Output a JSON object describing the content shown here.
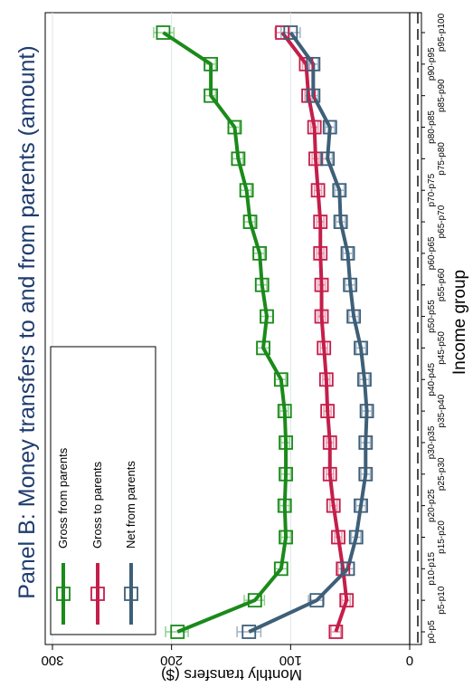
{
  "chart_data": {
    "type": "line",
    "title": "Panel B: Money transfers to and from parents (amount)",
    "xlabel": "Income group",
    "ylabel": "Monthly transfers ($)",
    "ylim": [
      0,
      300
    ],
    "yticks": [
      0,
      100,
      200,
      300
    ],
    "grid": true,
    "legend_position": "bottom-left",
    "categories": [
      "p0-p5",
      "p5-p10",
      "p10-p15",
      "p15-p20",
      "p20-p25",
      "p25-p30",
      "p30-p35",
      "p35-p40",
      "p40-p45",
      "p45-p50",
      "p50-p55",
      "p55-p60",
      "p60-p65",
      "p65-p70",
      "p70-p75",
      "p75-p80",
      "p80-p85",
      "p85-p90",
      "p90-p95",
      "p95-p100"
    ],
    "series": [
      {
        "name": "Gross from parents",
        "color": "#1a8a1a",
        "values": [
          195,
          130,
          108,
          104,
          105,
          104,
          104,
          105,
          108,
          123,
          120,
          124,
          126,
          134,
          137,
          144,
          147,
          167,
          167,
          207
        ],
        "ci_low": [
          186,
          122,
          103,
          100,
          101,
          100,
          101,
          102,
          104,
          118,
          115,
          120,
          122,
          130,
          133,
          140,
          143,
          163,
          163,
          198
        ],
        "ci_high": [
          205,
          139,
          113,
          108,
          109,
          108,
          108,
          109,
          113,
          128,
          125,
          129,
          131,
          139,
          142,
          149,
          152,
          172,
          172,
          215
        ]
      },
      {
        "name": "Gross to parents",
        "color": "#c41e4a",
        "values": [
          62,
          53,
          56,
          60,
          64,
          67,
          67,
          69,
          70,
          72,
          74,
          74,
          75,
          75,
          77,
          79,
          80,
          85,
          87,
          107
        ],
        "ci_low": [
          58,
          50,
          53,
          57,
          61,
          64,
          64,
          66,
          67,
          69,
          71,
          71,
          72,
          72,
          74,
          76,
          77,
          82,
          84,
          101
        ],
        "ci_high": [
          66,
          57,
          60,
          63,
          67,
          70,
          70,
          72,
          73,
          75,
          77,
          77,
          78,
          78,
          80,
          82,
          83,
          88,
          90,
          113
        ]
      },
      {
        "name": "Net from parents",
        "color": "#3e5f78",
        "values": [
          135,
          78,
          52,
          45,
          41,
          37,
          37,
          36,
          38,
          41,
          47,
          50,
          52,
          58,
          59,
          69,
          67,
          81,
          81,
          100
        ],
        "ci_low": [
          125,
          72,
          47,
          41,
          37,
          33,
          33,
          32,
          34,
          37,
          43,
          46,
          48,
          54,
          55,
          65,
          63,
          77,
          77,
          92
        ],
        "ci_high": [
          145,
          85,
          57,
          49,
          45,
          41,
          41,
          40,
          42,
          45,
          51,
          54,
          56,
          62,
          63,
          73,
          71,
          85,
          85,
          108
        ]
      }
    ]
  }
}
